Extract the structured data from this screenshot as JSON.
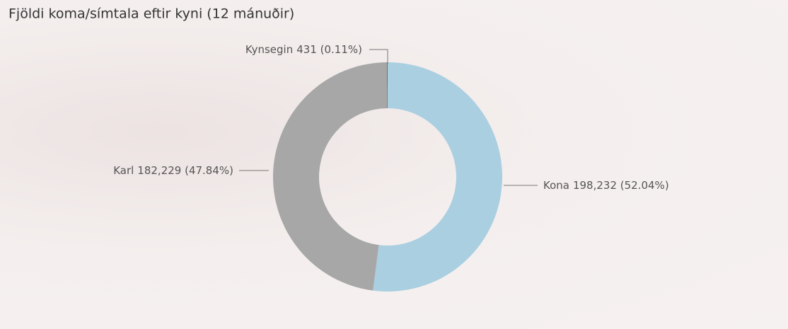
{
  "chart_data": {
    "type": "donut",
    "title": "Fjöldi koma/símtala eftir kyni (12 mánuðir)",
    "categories": [
      "Kona",
      "Karl",
      "Kynsegin"
    ],
    "values": [
      198232,
      182229,
      431
    ],
    "value_labels": [
      "198,232 (52.04%)",
      "182,229 (47.84%)",
      "431 (0.11%)"
    ],
    "colors": [
      "#a9cfe1",
      "#a7a7a7",
      "#6f6f6f"
    ]
  }
}
